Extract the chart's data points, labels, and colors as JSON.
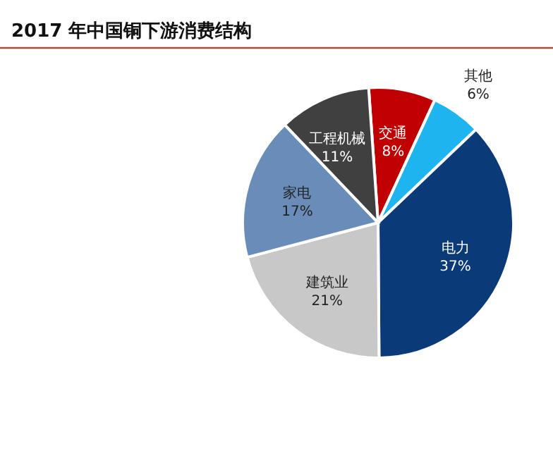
{
  "chart_data": {
    "type": "pie",
    "title": "2017 年中国铜下游消费结构",
    "categories": [
      "交通",
      "其他",
      "电力",
      "建筑业",
      "家电",
      "工程机械"
    ],
    "values": [
      8,
      6,
      37,
      21,
      17,
      11
    ],
    "value_labels": [
      "8%",
      "6%",
      "37%",
      "21%",
      "17%",
      "11%"
    ],
    "colors": [
      "#c00000",
      "#1eb4f0",
      "#0a3a78",
      "#c8c8c8",
      "#6a8cb8",
      "#404040"
    ]
  }
}
